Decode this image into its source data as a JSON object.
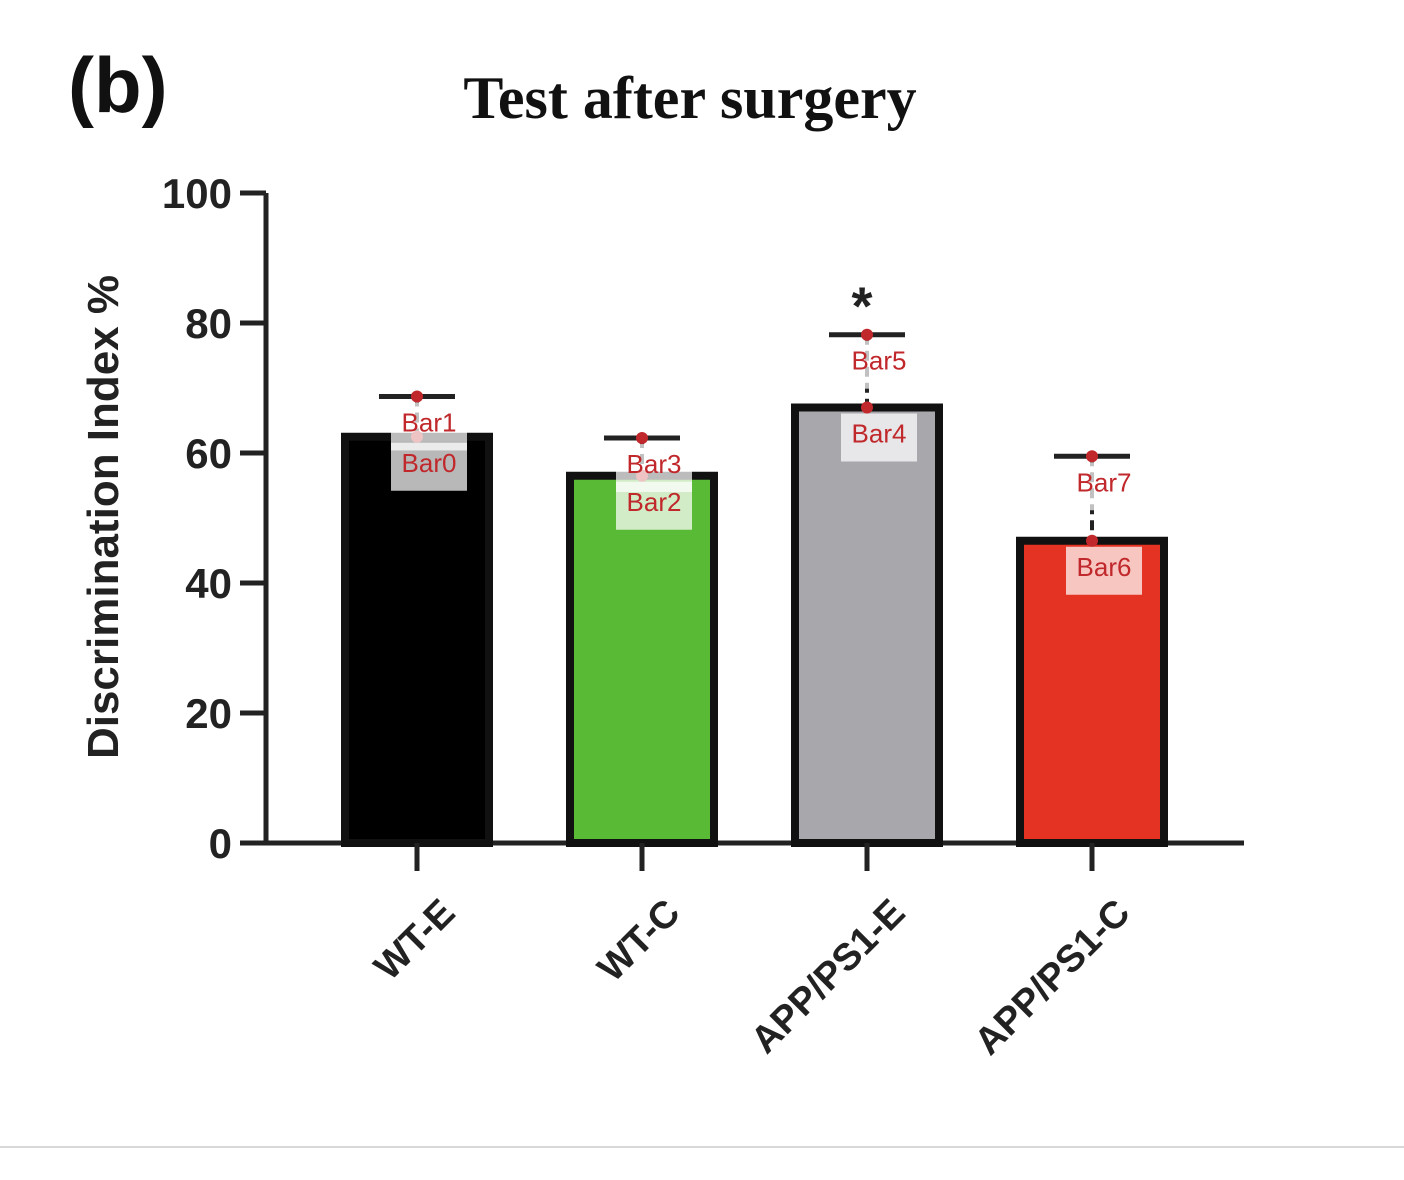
{
  "panel_label": "(b)",
  "chart_data": {
    "type": "bar",
    "title": "Test after surgery",
    "xlabel": "",
    "ylabel": "Discrimination Index %",
    "ylim": [
      0,
      100
    ],
    "yticks": [
      0,
      20,
      40,
      60,
      80,
      100
    ],
    "categories": [
      "WT-E",
      "WT-C",
      "APP/PS1-E",
      "APP/PS1-C"
    ],
    "values": [
      62.5,
      56.5,
      67,
      46.5
    ],
    "error_upper": [
      68.7,
      62.3,
      78.2,
      59.5
    ],
    "bar_colors": [
      "#000000",
      "#59bb35",
      "#a8a7ac",
      "#e43223"
    ],
    "significance": [
      {
        "category": "APP/PS1-E",
        "label": "*"
      }
    ],
    "annotations": [
      {
        "label": "Bar0",
        "category": "WT-E",
        "value": 62.5
      },
      {
        "label": "Bar1",
        "category": "WT-E",
        "value": 68.7
      },
      {
        "label": "Bar2",
        "category": "WT-C",
        "value": 56.5
      },
      {
        "label": "Bar3",
        "category": "WT-C",
        "value": 62.3
      },
      {
        "label": "Bar4",
        "category": "APP/PS1-E",
        "value": 67
      },
      {
        "label": "Bar5",
        "category": "APP/PS1-E",
        "value": 78.2
      },
      {
        "label": "Bar6",
        "category": "APP/PS1-C",
        "value": 46.5
      },
      {
        "label": "Bar7",
        "category": "APP/PS1-C",
        "value": 59.5
      }
    ],
    "annotation_color": "#c0282b"
  }
}
